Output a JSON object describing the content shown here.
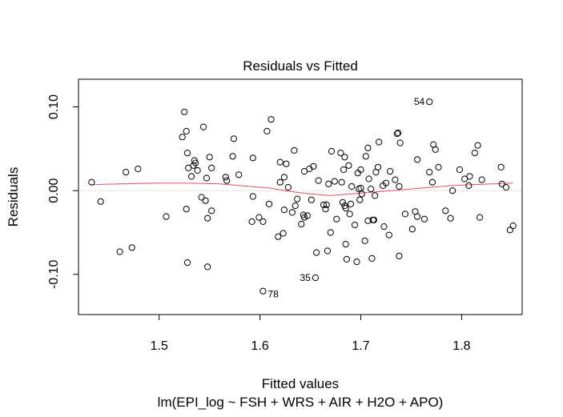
{
  "chart_data": {
    "type": "scatter",
    "title": "Residuals vs Fitted",
    "xlabel": "Fitted values",
    "ylabel": "Residuals",
    "subtitle": "lm(EPI_log ~ FSH + WRS + AIR + H2O + APO)",
    "xlim": [
      1.42,
      1.86
    ],
    "ylim": [
      -0.148,
      0.133
    ],
    "x_ticks": [
      {
        "value": 1.5,
        "label": "1.5"
      },
      {
        "value": 1.6,
        "label": "1.6"
      },
      {
        "value": 1.7,
        "label": "1.7"
      },
      {
        "value": 1.8,
        "label": "1.8"
      }
    ],
    "y_ticks": [
      {
        "value": -0.1,
        "label": "-0.10"
      },
      {
        "value": 0.0,
        "label": "0.00"
      },
      {
        "value": 0.1,
        "label": "0.10"
      }
    ],
    "reference_line": {
      "y": 0,
      "style": "dotted",
      "color": "#bebebe"
    },
    "points": [
      {
        "x": 1.433,
        "y": 0.01
      },
      {
        "x": 1.442,
        "y": -0.013
      },
      {
        "x": 1.461,
        "y": -0.073
      },
      {
        "x": 1.467,
        "y": 0.022
      },
      {
        "x": 1.473,
        "y": -0.068
      },
      {
        "x": 1.479,
        "y": 0.026
      },
      {
        "x": 1.507,
        "y": -0.031
      },
      {
        "x": 1.523,
        "y": 0.064
      },
      {
        "x": 1.525,
        "y": 0.094
      },
      {
        "x": 1.527,
        "y": 0.071
      },
      {
        "x": 1.527,
        "y": -0.022
      },
      {
        "x": 1.528,
        "y": -0.086
      },
      {
        "x": 1.528,
        "y": 0.045
      },
      {
        "x": 1.529,
        "y": 0.027
      },
      {
        "x": 1.532,
        "y": 0.017
      },
      {
        "x": 1.534,
        "y": 0.03
      },
      {
        "x": 1.535,
        "y": 0.036
      },
      {
        "x": 1.536,
        "y": 0.033
      },
      {
        "x": 1.538,
        "y": 0.024
      },
      {
        "x": 1.542,
        "y": -0.008
      },
      {
        "x": 1.544,
        "y": 0.076
      },
      {
        "x": 1.546,
        "y": -0.012
      },
      {
        "x": 1.547,
        "y": 0.015
      },
      {
        "x": 1.548,
        "y": -0.033
      },
      {
        "x": 1.548,
        "y": -0.091
      },
      {
        "x": 1.55,
        "y": 0.04
      },
      {
        "x": 1.552,
        "y": -0.024
      },
      {
        "x": 1.552,
        "y": 0.027
      },
      {
        "x": 1.566,
        "y": 0.016
      },
      {
        "x": 1.567,
        "y": 0.012
      },
      {
        "x": 1.573,
        "y": 0.041
      },
      {
        "x": 1.574,
        "y": 0.062
      },
      {
        "x": 1.579,
        "y": 0.019
      },
      {
        "x": 1.592,
        "y": -0.037
      },
      {
        "x": 1.593,
        "y": -0.007
      },
      {
        "x": 1.593,
        "y": 0.039
      },
      {
        "x": 1.599,
        "y": -0.032
      },
      {
        "x": 1.603,
        "y": -0.037
      },
      {
        "x": 1.603,
        "y": -0.12
      },
      {
        "x": 1.607,
        "y": 0.071
      },
      {
        "x": 1.609,
        "y": -0.016
      },
      {
        "x": 1.611,
        "y": 0.085
      },
      {
        "x": 1.618,
        "y": -0.055
      },
      {
        "x": 1.62,
        "y": 0.034
      },
      {
        "x": 1.62,
        "y": 0.01
      },
      {
        "x": 1.623,
        "y": -0.051
      },
      {
        "x": 1.624,
        "y": 0.016
      },
      {
        "x": 1.624,
        "y": -0.023
      },
      {
        "x": 1.626,
        "y": 0.032
      },
      {
        "x": 1.628,
        "y": 0.004
      },
      {
        "x": 1.632,
        "y": -0.026
      },
      {
        "x": 1.634,
        "y": 0.048
      },
      {
        "x": 1.635,
        "y": -0.018
      },
      {
        "x": 1.637,
        "y": -0.01
      },
      {
        "x": 1.641,
        "y": -0.04
      },
      {
        "x": 1.643,
        "y": -0.029
      },
      {
        "x": 1.644,
        "y": 0.023
      },
      {
        "x": 1.644,
        "y": -0.032
      },
      {
        "x": 1.647,
        "y": -0.03
      },
      {
        "x": 1.649,
        "y": 0.026
      },
      {
        "x": 1.651,
        "y": -0.011
      },
      {
        "x": 1.653,
        "y": 0.029
      },
      {
        "x": 1.655,
        "y": -0.104
      },
      {
        "x": 1.656,
        "y": -0.074
      },
      {
        "x": 1.658,
        "y": 0.012
      },
      {
        "x": 1.663,
        "y": -0.017
      },
      {
        "x": 1.665,
        "y": -0.022
      },
      {
        "x": 1.666,
        "y": -0.017
      },
      {
        "x": 1.667,
        "y": -0.072
      },
      {
        "x": 1.668,
        "y": 0.008
      },
      {
        "x": 1.67,
        "y": -0.05
      },
      {
        "x": 1.671,
        "y": 0.047
      },
      {
        "x": 1.674,
        "y": 0.011
      },
      {
        "x": 1.676,
        "y": -0.034
      },
      {
        "x": 1.68,
        "y": 0.045
      },
      {
        "x": 1.681,
        "y": 0.01
      },
      {
        "x": 1.682,
        "y": -0.014
      },
      {
        "x": 1.683,
        "y": 0.025
      },
      {
        "x": 1.684,
        "y": -0.018
      },
      {
        "x": 1.684,
        "y": 0.04
      },
      {
        "x": 1.685,
        "y": -0.021
      },
      {
        "x": 1.685,
        "y": -0.064
      },
      {
        "x": 1.686,
        "y": -0.082
      },
      {
        "x": 1.688,
        "y": 0.03
      },
      {
        "x": 1.689,
        "y": -0.028
      },
      {
        "x": 1.69,
        "y": -0.016
      },
      {
        "x": 1.691,
        "y": 0.005
      },
      {
        "x": 1.694,
        "y": -0.041
      },
      {
        "x": 1.696,
        "y": -0.085
      },
      {
        "x": 1.697,
        "y": 0.021
      },
      {
        "x": 1.698,
        "y": 0.002
      },
      {
        "x": 1.699,
        "y": -0.011
      },
      {
        "x": 1.7,
        "y": 0.003
      },
      {
        "x": 1.7,
        "y": 0.025
      },
      {
        "x": 1.701,
        "y": -0.004
      },
      {
        "x": 1.704,
        "y": -0.06
      },
      {
        "x": 1.705,
        "y": 0.041
      },
      {
        "x": 1.707,
        "y": -0.036
      },
      {
        "x": 1.707,
        "y": 0.051
      },
      {
        "x": 1.708,
        "y": 0.014
      },
      {
        "x": 1.71,
        "y": 0.002
      },
      {
        "x": 1.711,
        "y": -0.081
      },
      {
        "x": 1.712,
        "y": -0.035
      },
      {
        "x": 1.713,
        "y": -0.035
      },
      {
        "x": 1.714,
        "y": -0.006
      },
      {
        "x": 1.715,
        "y": 0.022
      },
      {
        "x": 1.717,
        "y": 0.028
      },
      {
        "x": 1.718,
        "y": 0.058
      },
      {
        "x": 1.722,
        "y": 0.006
      },
      {
        "x": 1.723,
        "y": -0.043
      },
      {
        "x": 1.725,
        "y": 0.009
      },
      {
        "x": 1.728,
        "y": -0.053
      },
      {
        "x": 1.729,
        "y": 0.023
      },
      {
        "x": 1.734,
        "y": 0.013
      },
      {
        "x": 1.736,
        "y": 0.068
      },
      {
        "x": 1.737,
        "y": 0.069
      },
      {
        "x": 1.738,
        "y": -0.078
      },
      {
        "x": 1.738,
        "y": 0.005
      },
      {
        "x": 1.739,
        "y": 0.057
      },
      {
        "x": 1.744,
        "y": -0.028
      },
      {
        "x": 1.751,
        "y": -0.046
      },
      {
        "x": 1.754,
        "y": -0.025
      },
      {
        "x": 1.756,
        "y": -0.031
      },
      {
        "x": 1.756,
        "y": 0.037
      },
      {
        "x": 1.763,
        "y": -0.034
      },
      {
        "x": 1.768,
        "y": 0.106
      },
      {
        "x": 1.768,
        "y": 0.022
      },
      {
        "x": 1.771,
        "y": 0.01
      },
      {
        "x": 1.772,
        "y": 0.055
      },
      {
        "x": 1.774,
        "y": 0.049
      },
      {
        "x": 1.777,
        "y": 0.028
      },
      {
        "x": 1.784,
        "y": -0.024
      },
      {
        "x": 1.789,
        "y": -0.033
      },
      {
        "x": 1.791,
        "y": 0.0
      },
      {
        "x": 1.798,
        "y": 0.025
      },
      {
        "x": 1.803,
        "y": 0.014
      },
      {
        "x": 1.807,
        "y": 0.006
      },
      {
        "x": 1.808,
        "y": 0.017
      },
      {
        "x": 1.813,
        "y": 0.045
      },
      {
        "x": 1.816,
        "y": 0.054
      },
      {
        "x": 1.818,
        "y": -0.032
      },
      {
        "x": 1.82,
        "y": 0.013
      },
      {
        "x": 1.839,
        "y": 0.028
      },
      {
        "x": 1.84,
        "y": 0.008
      },
      {
        "x": 1.844,
        "y": 0.004
      },
      {
        "x": 1.848,
        "y": -0.047
      },
      {
        "x": 1.851,
        "y": -0.042
      }
    ],
    "point_labels": [
      {
        "text": "54",
        "x": 1.768,
        "y": 0.106
      },
      {
        "text": "35",
        "x": 1.655,
        "y": -0.104
      },
      {
        "text": "78",
        "x": 1.603,
        "y": -0.12
      }
    ],
    "smooth_line": {
      "color": "#df536b",
      "points": [
        {
          "x": 1.433,
          "y": 0.007
        },
        {
          "x": 1.46,
          "y": 0.008
        },
        {
          "x": 1.5,
          "y": 0.009
        },
        {
          "x": 1.53,
          "y": 0.009
        },
        {
          "x": 1.56,
          "y": 0.008
        },
        {
          "x": 1.59,
          "y": 0.005
        },
        {
          "x": 1.61,
          "y": 0.003
        },
        {
          "x": 1.63,
          "y": -0.001
        },
        {
          "x": 1.65,
          "y": -0.004
        },
        {
          "x": 1.67,
          "y": -0.006
        },
        {
          "x": 1.69,
          "y": -0.004
        },
        {
          "x": 1.71,
          "y": -0.002
        },
        {
          "x": 1.73,
          "y": 0.0
        },
        {
          "x": 1.75,
          "y": 0.002
        },
        {
          "x": 1.77,
          "y": 0.004
        },
        {
          "x": 1.79,
          "y": 0.006
        },
        {
          "x": 1.81,
          "y": 0.007
        },
        {
          "x": 1.83,
          "y": 0.008
        },
        {
          "x": 1.851,
          "y": 0.009
        }
      ]
    }
  }
}
